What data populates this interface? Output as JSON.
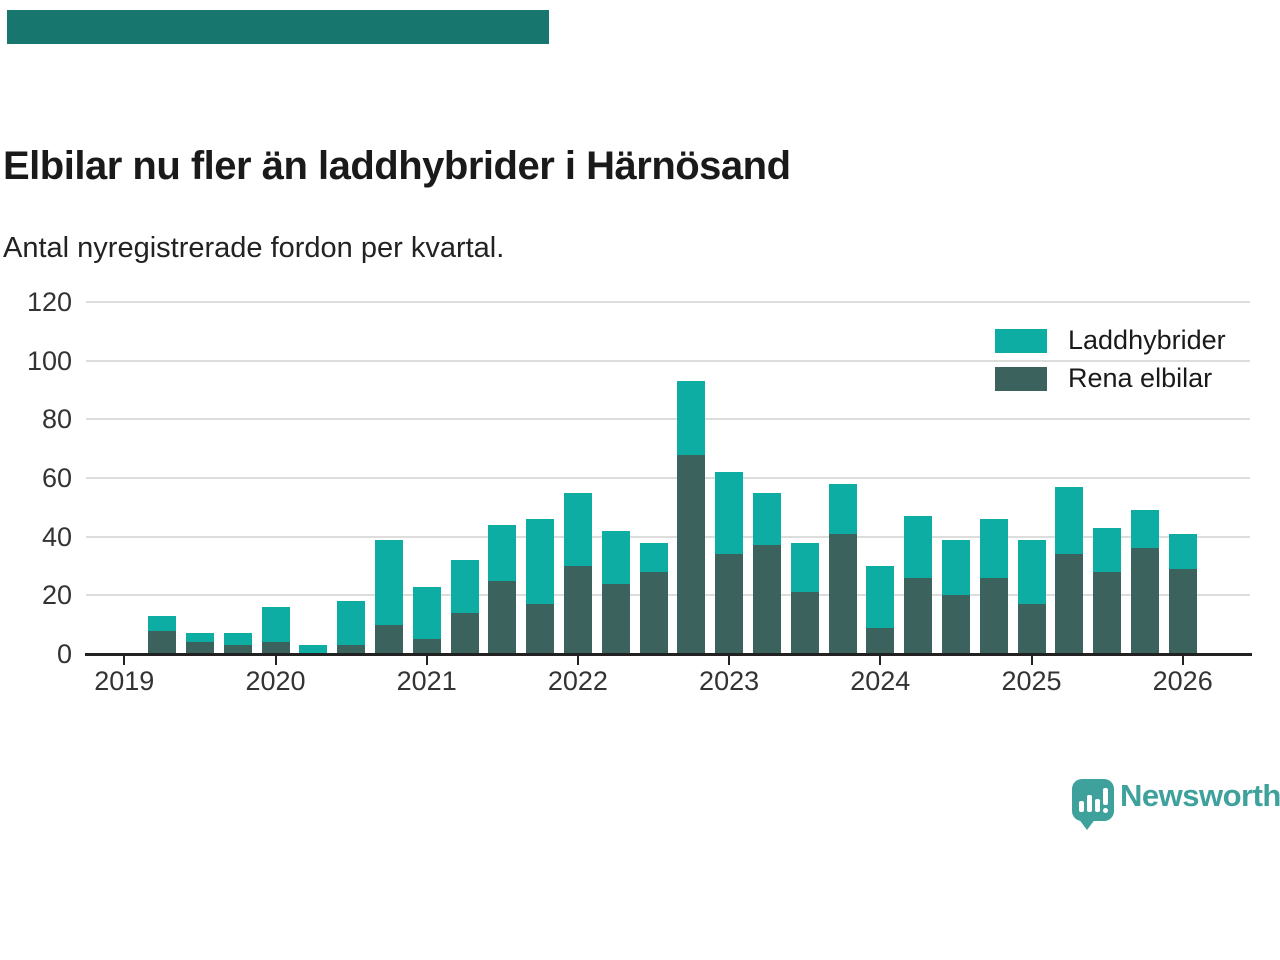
{
  "accent_bar": {
    "color": "#17776f"
  },
  "header": {
    "title": "Elbilar nu fler än laddhybrider i Härnösand",
    "subtitle": "Antal nyregistrerade fordon per kvartal."
  },
  "legend": [
    {
      "label": "Laddhybrider",
      "color": "#0dada3"
    },
    {
      "label": "Rena elbilar",
      "color": "#3c625e"
    }
  ],
  "chart_data": {
    "type": "bar",
    "stacked": true,
    "title": "Elbilar nu fler än laddhybrider i Härnösand",
    "subtitle": "Antal nyregistrerade fordon per kvartal.",
    "xlabel": "",
    "ylabel": "",
    "ylim": [
      0,
      120
    ],
    "yticks": [
      0,
      20,
      40,
      60,
      80,
      100,
      120
    ],
    "grid": "horizontal",
    "legend_position": "top-right",
    "x_year_ticks": [
      "2019",
      "2020",
      "2021",
      "2022",
      "2023",
      "2024",
      "2025",
      "2026"
    ],
    "categories": [
      "2019 Q2",
      "2019 Q3",
      "2019 Q4",
      "2020 Q1",
      "2020 Q2",
      "2020 Q3",
      "2020 Q4",
      "2021 Q1",
      "2021 Q2",
      "2021 Q3",
      "2021 Q4",
      "2022 Q1",
      "2022 Q2",
      "2022 Q3",
      "2022 Q4",
      "2023 Q1",
      "2023 Q2",
      "2023 Q3",
      "2023 Q4",
      "2024 Q1",
      "2024 Q2",
      "2024 Q3",
      "2024 Q4",
      "2025 Q1",
      "2025 Q2",
      "2025 Q3",
      "2025 Q4",
      "2026 Q1"
    ],
    "series": [
      {
        "name": "Laddhybrider",
        "color": "#0dada3",
        "values": [
          5,
          3,
          4,
          12,
          3,
          15,
          29,
          18,
          18,
          19,
          29,
          25,
          18,
          10,
          25,
          28,
          18,
          17,
          17,
          21,
          21,
          19,
          20,
          22,
          23,
          15,
          13,
          12
        ]
      },
      {
        "name": "Rena elbilar",
        "color": "#3c625e",
        "values": [
          8,
          4,
          3,
          4,
          0,
          3,
          10,
          5,
          14,
          25,
          17,
          30,
          24,
          28,
          68,
          34,
          37,
          21,
          41,
          9,
          26,
          20,
          26,
          17,
          34,
          28,
          36,
          29
        ]
      }
    ]
  },
  "footer": {
    "brand": "Newsworthy",
    "brand_color": "#3fa19c",
    "logo_icon": "speech-bubble-bar-chart-icon"
  }
}
